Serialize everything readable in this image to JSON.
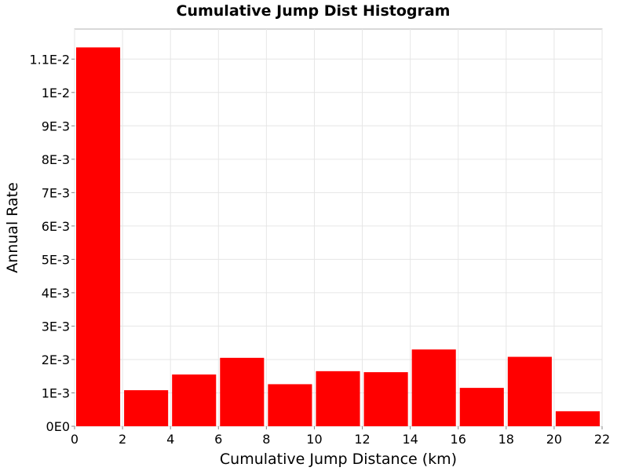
{
  "chart_data": {
    "type": "bar",
    "title": "Cumulative Jump Dist Histogram",
    "xlabel": "Cumulative Jump Distance (km)",
    "ylabel": "Annual Rate",
    "xlim": [
      0,
      22
    ],
    "ylim": [
      0,
      0.0119
    ],
    "grid": true,
    "legend": "none",
    "bar_color": "#ff0000",
    "x_ticks": [
      0,
      2,
      4,
      6,
      8,
      10,
      12,
      14,
      16,
      18,
      20,
      22
    ],
    "y_ticks": [
      {
        "value": 0,
        "label": "0E0"
      },
      {
        "value": 0.001,
        "label": "1E-3"
      },
      {
        "value": 0.002,
        "label": "2E-3"
      },
      {
        "value": 0.003,
        "label": "3E-3"
      },
      {
        "value": 0.004,
        "label": "4E-3"
      },
      {
        "value": 0.005,
        "label": "5E-3"
      },
      {
        "value": 0.006,
        "label": "6E-3"
      },
      {
        "value": 0.007,
        "label": "7E-3"
      },
      {
        "value": 0.008,
        "label": "8E-3"
      },
      {
        "value": 0.009,
        "label": "9E-3"
      },
      {
        "value": 0.01,
        "label": "1E-2"
      },
      {
        "value": 0.011,
        "label": "1.1E-2"
      }
    ],
    "bins": [
      {
        "x0": 0,
        "x1": 2,
        "value": 0.01135
      },
      {
        "x0": 2,
        "x1": 4,
        "value": 0.00108
      },
      {
        "x0": 4,
        "x1": 6,
        "value": 0.00155
      },
      {
        "x0": 6,
        "x1": 8,
        "value": 0.00205
      },
      {
        "x0": 8,
        "x1": 10,
        "value": 0.00126
      },
      {
        "x0": 10,
        "x1": 12,
        "value": 0.00165
      },
      {
        "x0": 12,
        "x1": 14,
        "value": 0.00162
      },
      {
        "x0": 14,
        "x1": 16,
        "value": 0.0023
      },
      {
        "x0": 16,
        "x1": 18,
        "value": 0.00115
      },
      {
        "x0": 18,
        "x1": 20,
        "value": 0.00208
      },
      {
        "x0": 20,
        "x1": 22,
        "value": 0.00045
      }
    ]
  }
}
